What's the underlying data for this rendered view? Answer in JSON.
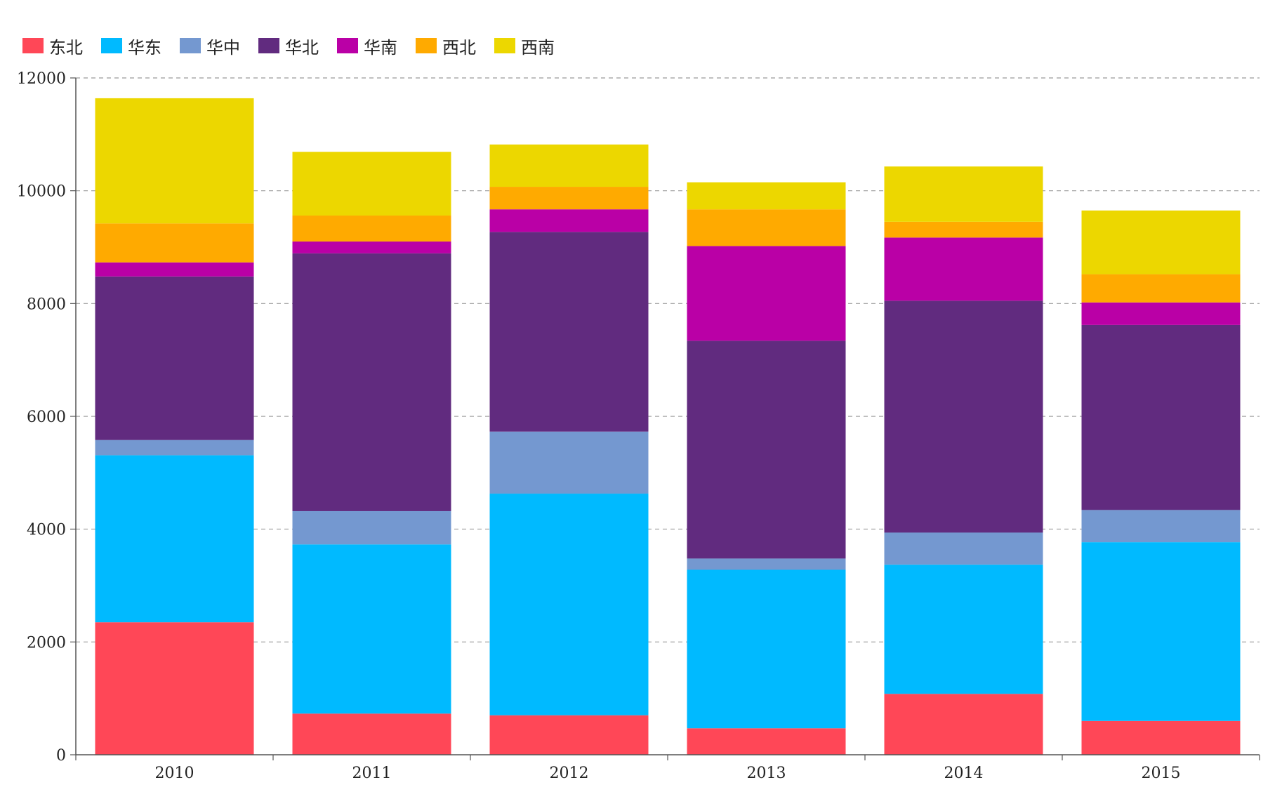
{
  "chart_data": {
    "type": "bar",
    "stacked": true,
    "title": "",
    "xlabel": "",
    "ylabel": "",
    "ylim": [
      0,
      12000
    ],
    "yticks": [
      0,
      2000,
      4000,
      6000,
      8000,
      10000,
      12000
    ],
    "grid": "horizontal dashed",
    "legend_position": "top-left",
    "categories": [
      "2010",
      "2011",
      "2012",
      "2013",
      "2014",
      "2015"
    ],
    "series": [
      {
        "name": "东北",
        "color": "#ff4757",
        "values": [
          2350,
          730,
          700,
          470,
          1080,
          600
        ]
      },
      {
        "name": "华东",
        "color": "#00baff",
        "values": [
          2960,
          3000,
          3930,
          2810,
          2290,
          3170
        ]
      },
      {
        "name": "华中",
        "color": "#7498d0",
        "values": [
          270,
          590,
          1100,
          200,
          570,
          570
        ]
      },
      {
        "name": "华北",
        "color": "#612b7f",
        "values": [
          2900,
          4570,
          3540,
          3860,
          4110,
          3280
        ]
      },
      {
        "name": "华南",
        "color": "#ba00a6",
        "values": [
          250,
          210,
          400,
          1680,
          1120,
          400
        ]
      },
      {
        "name": "西北",
        "color": "#ffaa00",
        "values": [
          690,
          460,
          400,
          650,
          280,
          500
        ]
      },
      {
        "name": "西南",
        "color": "#ecd700",
        "values": [
          2220,
          1130,
          750,
          480,
          980,
          1130
        ]
      }
    ]
  }
}
